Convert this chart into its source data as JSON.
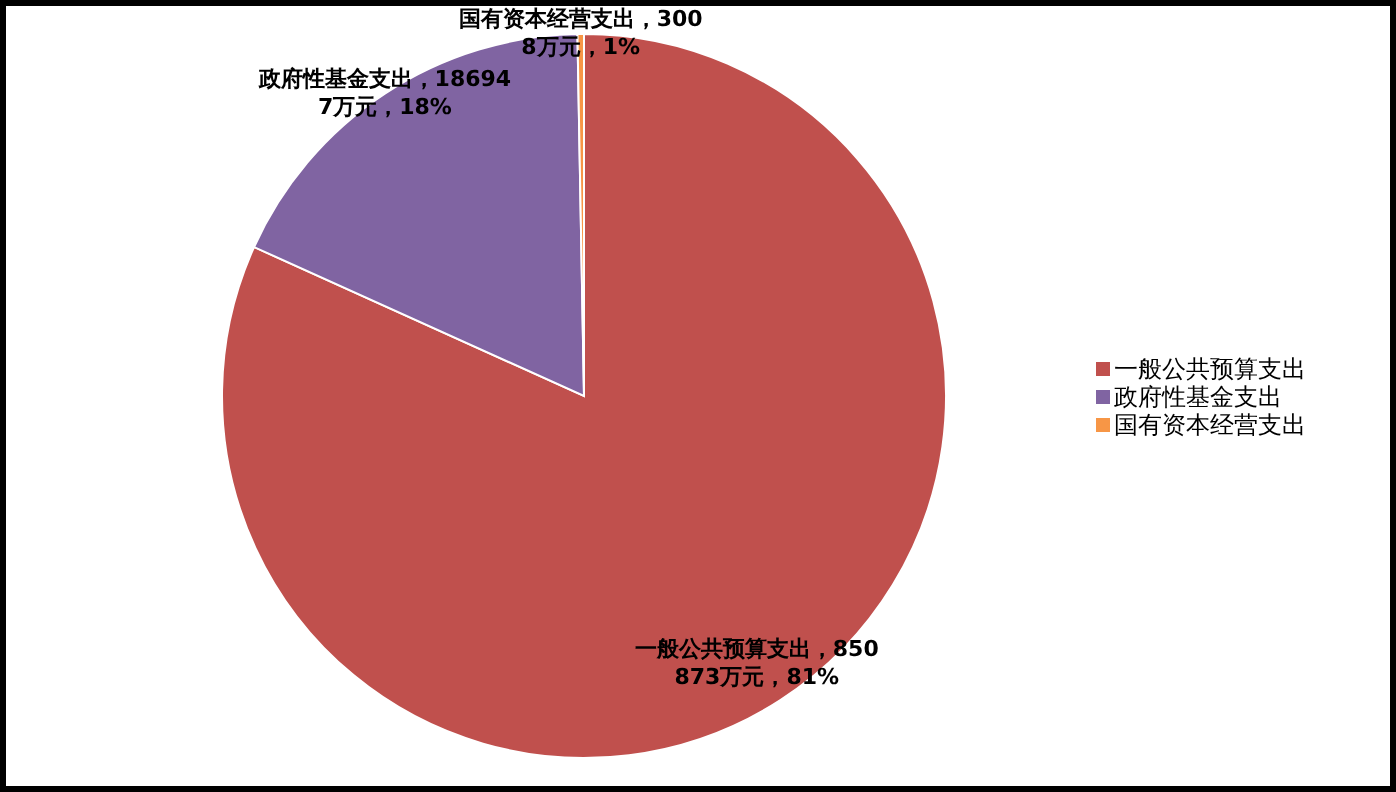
{
  "chart_data": {
    "type": "pie",
    "categories": [
      "一般公共预算支出",
      "政府性基金支出",
      "国有资本经营支出"
    ],
    "values": [
      850873,
      186947,
      3008
    ],
    "colors": [
      "#c0504d",
      "#8064a2",
      "#f79646"
    ],
    "value_labels": [
      "一般公共预算支出，850873万元，81%",
      "政府性基金支出，186947万元，18%",
      "国有资本经营支出，3008万元，1%"
    ],
    "legend": "right"
  }
}
